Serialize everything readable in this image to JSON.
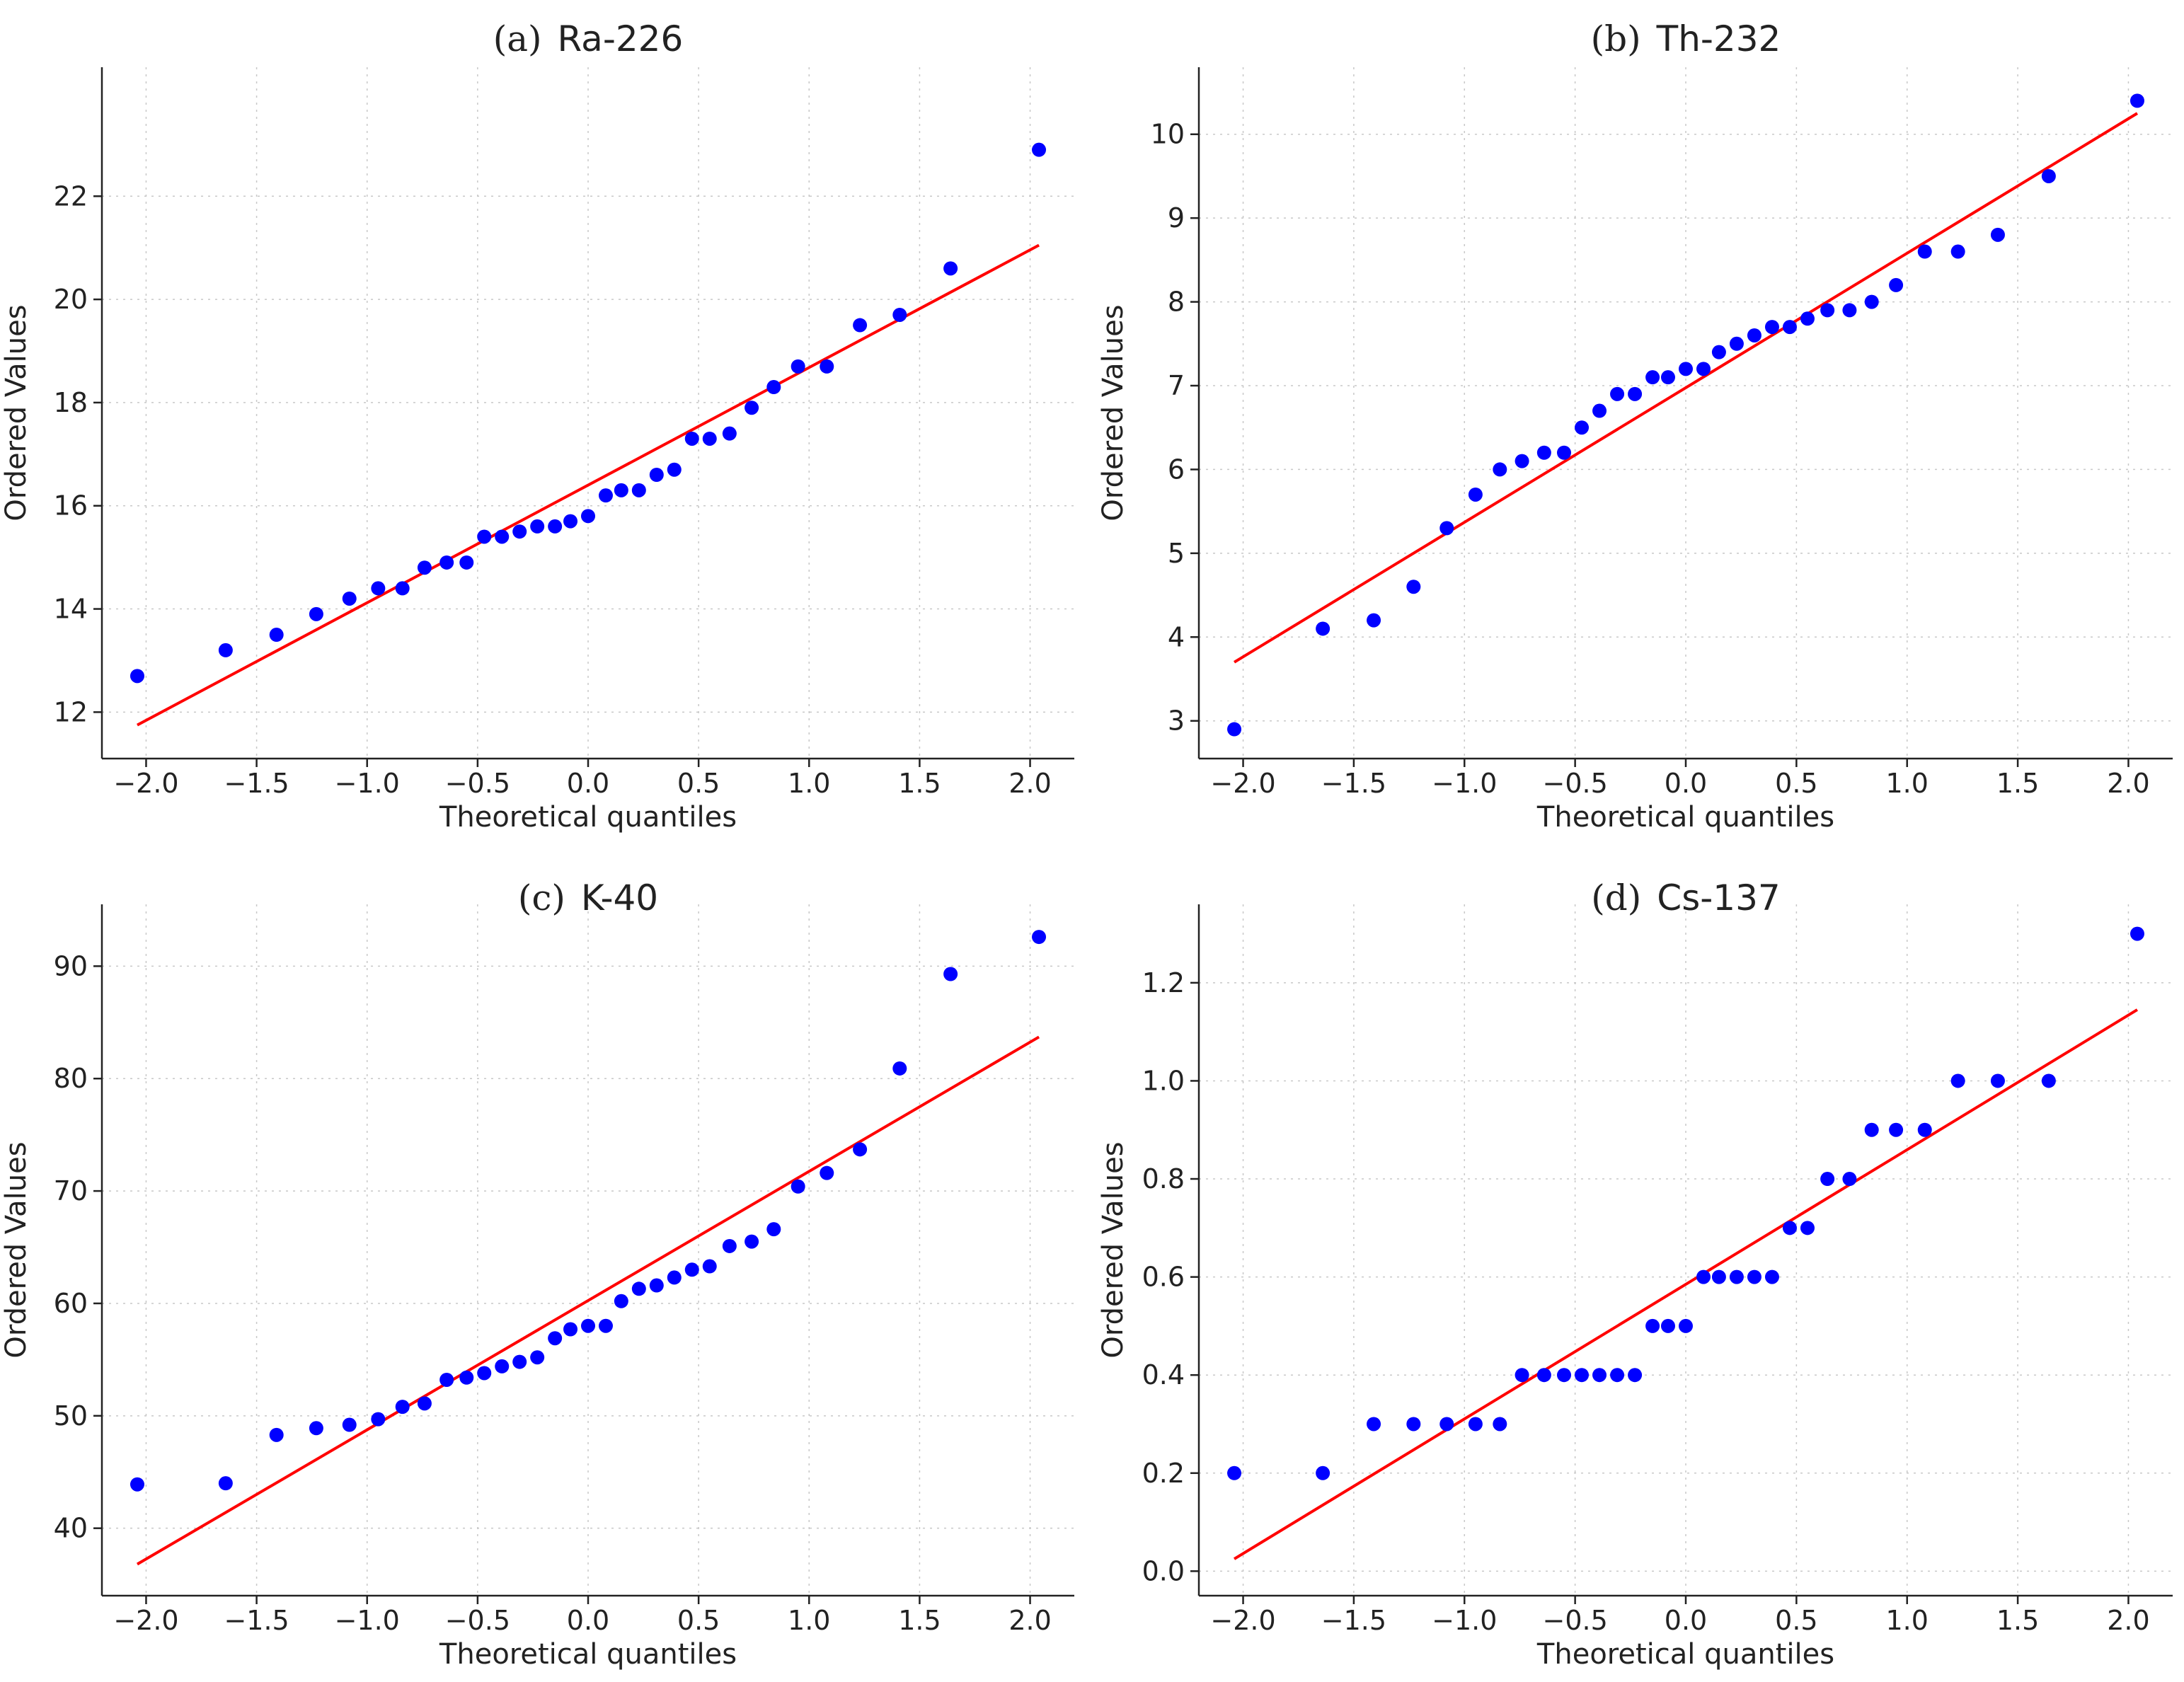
{
  "figure": {
    "colors": {
      "points": "#0000ff",
      "fit_line": "#ff0000",
      "axes": "#222222",
      "grid": "#c8c8c8"
    }
  },
  "chart_data": [
    {
      "id": "a",
      "type": "scatter",
      "title": {
        "letter": "(a)",
        "name": "Ra-226"
      },
      "xlabel": "Theoretical quantiles",
      "ylabel": "Ordered Values",
      "xlim": [
        -2.2,
        2.2
      ],
      "ylim": [
        11.1,
        24.5
      ],
      "xticks": [
        -2.0,
        -1.5,
        -1.0,
        -0.5,
        0.0,
        0.5,
        1.0,
        1.5,
        2.0
      ],
      "xtick_labels": [
        "−2.0",
        "−1.5",
        "−1.0",
        "−0.5",
        "0.0",
        "0.5",
        "1.0",
        "1.5",
        "2.0"
      ],
      "yticks": [
        12,
        14,
        16,
        18,
        20,
        22
      ],
      "ytick_labels": [
        "12",
        "14",
        "16",
        "18",
        "20",
        "22"
      ],
      "fit_line": {
        "x": [
          -2.04,
          2.04
        ],
        "y": [
          11.75,
          21.05
        ]
      },
      "points": {
        "x": [
          -2.04,
          -1.64,
          -1.41,
          -1.23,
          -1.08,
          -0.95,
          -0.84,
          -0.74,
          -0.64,
          -0.55,
          -0.47,
          -0.39,
          -0.31,
          -0.23,
          -0.15,
          -0.08,
          0.0,
          0.08,
          0.15,
          0.23,
          0.31,
          0.39,
          0.47,
          0.55,
          0.64,
          0.74,
          0.84,
          0.95,
          1.08,
          1.23,
          1.41,
          1.64,
          2.04
        ],
        "y": [
          12.7,
          13.2,
          13.5,
          13.9,
          14.2,
          14.4,
          14.4,
          14.8,
          14.9,
          14.9,
          15.4,
          15.4,
          15.5,
          15.6,
          15.6,
          15.7,
          15.8,
          16.2,
          16.3,
          16.3,
          16.6,
          16.7,
          17.3,
          17.3,
          17.4,
          17.9,
          18.3,
          18.7,
          18.7,
          19.5,
          19.7,
          20.6,
          22.9
        ]
      }
    },
    {
      "id": "b",
      "type": "scatter",
      "title": {
        "letter": "(b)",
        "name": "Th-232"
      },
      "xlabel": "Theoretical quantiles",
      "ylabel": "Ordered Values",
      "xlim": [
        -2.2,
        2.2
      ],
      "ylim": [
        2.55,
        10.8
      ],
      "xticks": [
        -2.0,
        -1.5,
        -1.0,
        -0.5,
        0.0,
        0.5,
        1.0,
        1.5,
        2.0
      ],
      "xtick_labels": [
        "−2.0",
        "−1.5",
        "−1.0",
        "−0.5",
        "0.0",
        "0.5",
        "1.0",
        "1.5",
        "2.0"
      ],
      "yticks": [
        3,
        4,
        5,
        6,
        7,
        8,
        9,
        10
      ],
      "ytick_labels": [
        "3",
        "4",
        "5",
        "6",
        "7",
        "8",
        "9",
        "10"
      ],
      "fit_line": {
        "x": [
          -2.04,
          2.04
        ],
        "y": [
          3.7,
          10.25
        ]
      },
      "points": {
        "x": [
          -2.04,
          -1.64,
          -1.41,
          -1.23,
          -1.08,
          -0.95,
          -0.84,
          -0.74,
          -0.64,
          -0.55,
          -0.47,
          -0.39,
          -0.31,
          -0.23,
          -0.15,
          -0.08,
          0.0,
          0.08,
          0.15,
          0.23,
          0.31,
          0.39,
          0.47,
          0.55,
          0.64,
          0.74,
          0.84,
          0.95,
          1.08,
          1.23,
          1.41,
          1.64,
          2.04
        ],
        "y": [
          2.9,
          4.1,
          4.2,
          4.6,
          5.3,
          5.7,
          6.0,
          6.1,
          6.2,
          6.2,
          6.5,
          6.7,
          6.9,
          6.9,
          7.1,
          7.1,
          7.2,
          7.2,
          7.4,
          7.5,
          7.6,
          7.7,
          7.7,
          7.8,
          7.9,
          7.9,
          8.0,
          8.2,
          8.6,
          8.6,
          8.8,
          9.5,
          10.4
        ]
      }
    },
    {
      "id": "c",
      "type": "scatter",
      "title": {
        "letter": "(c)",
        "name": "K-40"
      },
      "xlabel": "Theoretical quantiles",
      "ylabel": "Ordered Values",
      "xlim": [
        -2.2,
        2.2
      ],
      "ylim": [
        34.0,
        95.5
      ],
      "xticks": [
        -2.0,
        -1.5,
        -1.0,
        -0.5,
        0.0,
        0.5,
        1.0,
        1.5,
        2.0
      ],
      "xtick_labels": [
        "−2.0",
        "−1.5",
        "−1.0",
        "−0.5",
        "0.0",
        "0.5",
        "1.0",
        "1.5",
        "2.0"
      ],
      "yticks": [
        40,
        50,
        60,
        70,
        80,
        90
      ],
      "ytick_labels": [
        "40",
        "50",
        "60",
        "70",
        "80",
        "90"
      ],
      "fit_line": {
        "x": [
          -2.04,
          2.04
        ],
        "y": [
          36.8,
          83.7
        ]
      },
      "points": {
        "x": [
          -2.04,
          -1.64,
          -1.41,
          -1.23,
          -1.08,
          -0.95,
          -0.84,
          -0.74,
          -0.64,
          -0.55,
          -0.47,
          -0.39,
          -0.31,
          -0.23,
          -0.15,
          -0.08,
          0.0,
          0.08,
          0.15,
          0.23,
          0.31,
          0.39,
          0.47,
          0.55,
          0.64,
          0.74,
          0.84,
          0.95,
          1.08,
          1.23,
          1.41,
          1.64,
          2.04
        ],
        "y": [
          43.9,
          44.0,
          48.3,
          48.9,
          49.2,
          49.7,
          50.8,
          51.1,
          53.2,
          53.4,
          53.8,
          54.4,
          54.8,
          55.2,
          56.9,
          57.7,
          58.0,
          58.0,
          60.2,
          61.3,
          61.6,
          62.3,
          63.0,
          63.3,
          65.1,
          65.5,
          66.6,
          70.4,
          71.6,
          73.7,
          80.9,
          89.3,
          92.6
        ]
      }
    },
    {
      "id": "d",
      "type": "scatter",
      "title": {
        "letter": "(d)",
        "name": "Cs-137"
      },
      "xlabel": "Theoretical quantiles",
      "ylabel": "Ordered Values",
      "xlim": [
        -2.2,
        2.2
      ],
      "ylim": [
        -0.05,
        1.36
      ],
      "xticks": [
        -2.0,
        -1.5,
        -1.0,
        -0.5,
        0.0,
        0.5,
        1.0,
        1.5,
        2.0
      ],
      "xtick_labels": [
        "−2.0",
        "−1.5",
        "−1.0",
        "−0.5",
        "0.0",
        "0.5",
        "1.0",
        "1.5",
        "2.0"
      ],
      "yticks": [
        0.0,
        0.2,
        0.4,
        0.6,
        0.8,
        1.0,
        1.2
      ],
      "ytick_labels": [
        "0.0",
        "0.2",
        "0.4",
        "0.6",
        "0.8",
        "1.0",
        "1.2"
      ],
      "fit_line": {
        "x": [
          -2.04,
          2.04
        ],
        "y": [
          0.025,
          1.145
        ]
      },
      "points": {
        "x": [
          -2.04,
          -1.64,
          -1.41,
          -1.23,
          -1.08,
          -0.95,
          -0.84,
          -0.74,
          -0.64,
          -0.55,
          -0.47,
          -0.39,
          -0.31,
          -0.23,
          -0.15,
          -0.08,
          0.0,
          0.08,
          0.15,
          0.23,
          0.31,
          0.39,
          0.47,
          0.55,
          0.64,
          0.74,
          0.84,
          0.95,
          1.08,
          1.23,
          1.41,
          1.64,
          2.04
        ],
        "y": [
          0.2,
          0.2,
          0.3,
          0.3,
          0.3,
          0.3,
          0.3,
          0.4,
          0.4,
          0.4,
          0.4,
          0.4,
          0.4,
          0.4,
          0.5,
          0.5,
          0.5,
          0.6,
          0.6,
          0.6,
          0.6,
          0.6,
          0.7,
          0.7,
          0.8,
          0.8,
          0.9,
          0.9,
          0.9,
          1.0,
          1.0,
          1.0,
          1.3
        ]
      }
    }
  ]
}
